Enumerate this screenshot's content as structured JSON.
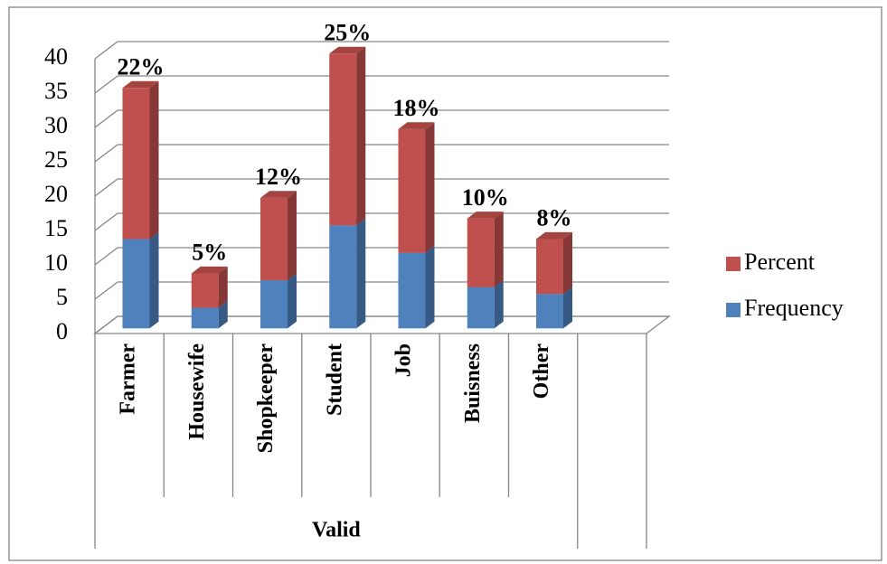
{
  "chart_data": {
    "type": "bar",
    "categories": [
      "Farmer",
      "Housewife",
      "Shopkeeper",
      "Student",
      "Job",
      "Buisness",
      "Other",
      null
    ],
    "group_label": "Valid",
    "series": [
      {
        "name": "Frequency",
        "color": "#4f81bd",
        "values": [
          13,
          3,
          7,
          15,
          11,
          6,
          5,
          null
        ]
      },
      {
        "name": "Percent",
        "color": "#c0504d",
        "values": [
          22,
          5,
          12,
          25,
          18,
          10,
          8,
          null
        ],
        "value_labels": [
          "22%",
          "5%",
          "12%",
          "25%",
          "18%",
          "10%",
          "8%",
          null
        ]
      }
    ],
    "stacked": true,
    "ylim": [
      0,
      40
    ],
    "yticks": [
      0,
      5,
      10,
      15,
      20,
      25,
      30,
      35,
      40
    ],
    "grid": true,
    "legend": "right"
  }
}
